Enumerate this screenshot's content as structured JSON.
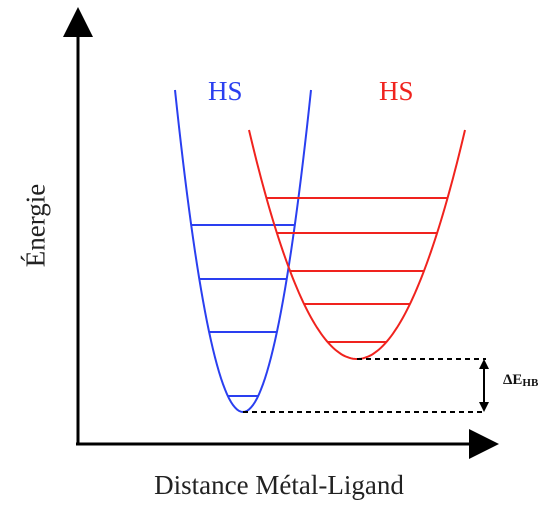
{
  "axes": {
    "x_label": "Distance Métal-Ligand",
    "y_label": "Énergie"
  },
  "curves": {
    "left": {
      "label": "HS",
      "color": "#2a3ff0"
    },
    "right": {
      "label": "HS",
      "color": "#f0231e"
    }
  },
  "energy_gap": {
    "symbol": "ΔE",
    "subscript": "HB"
  }
}
